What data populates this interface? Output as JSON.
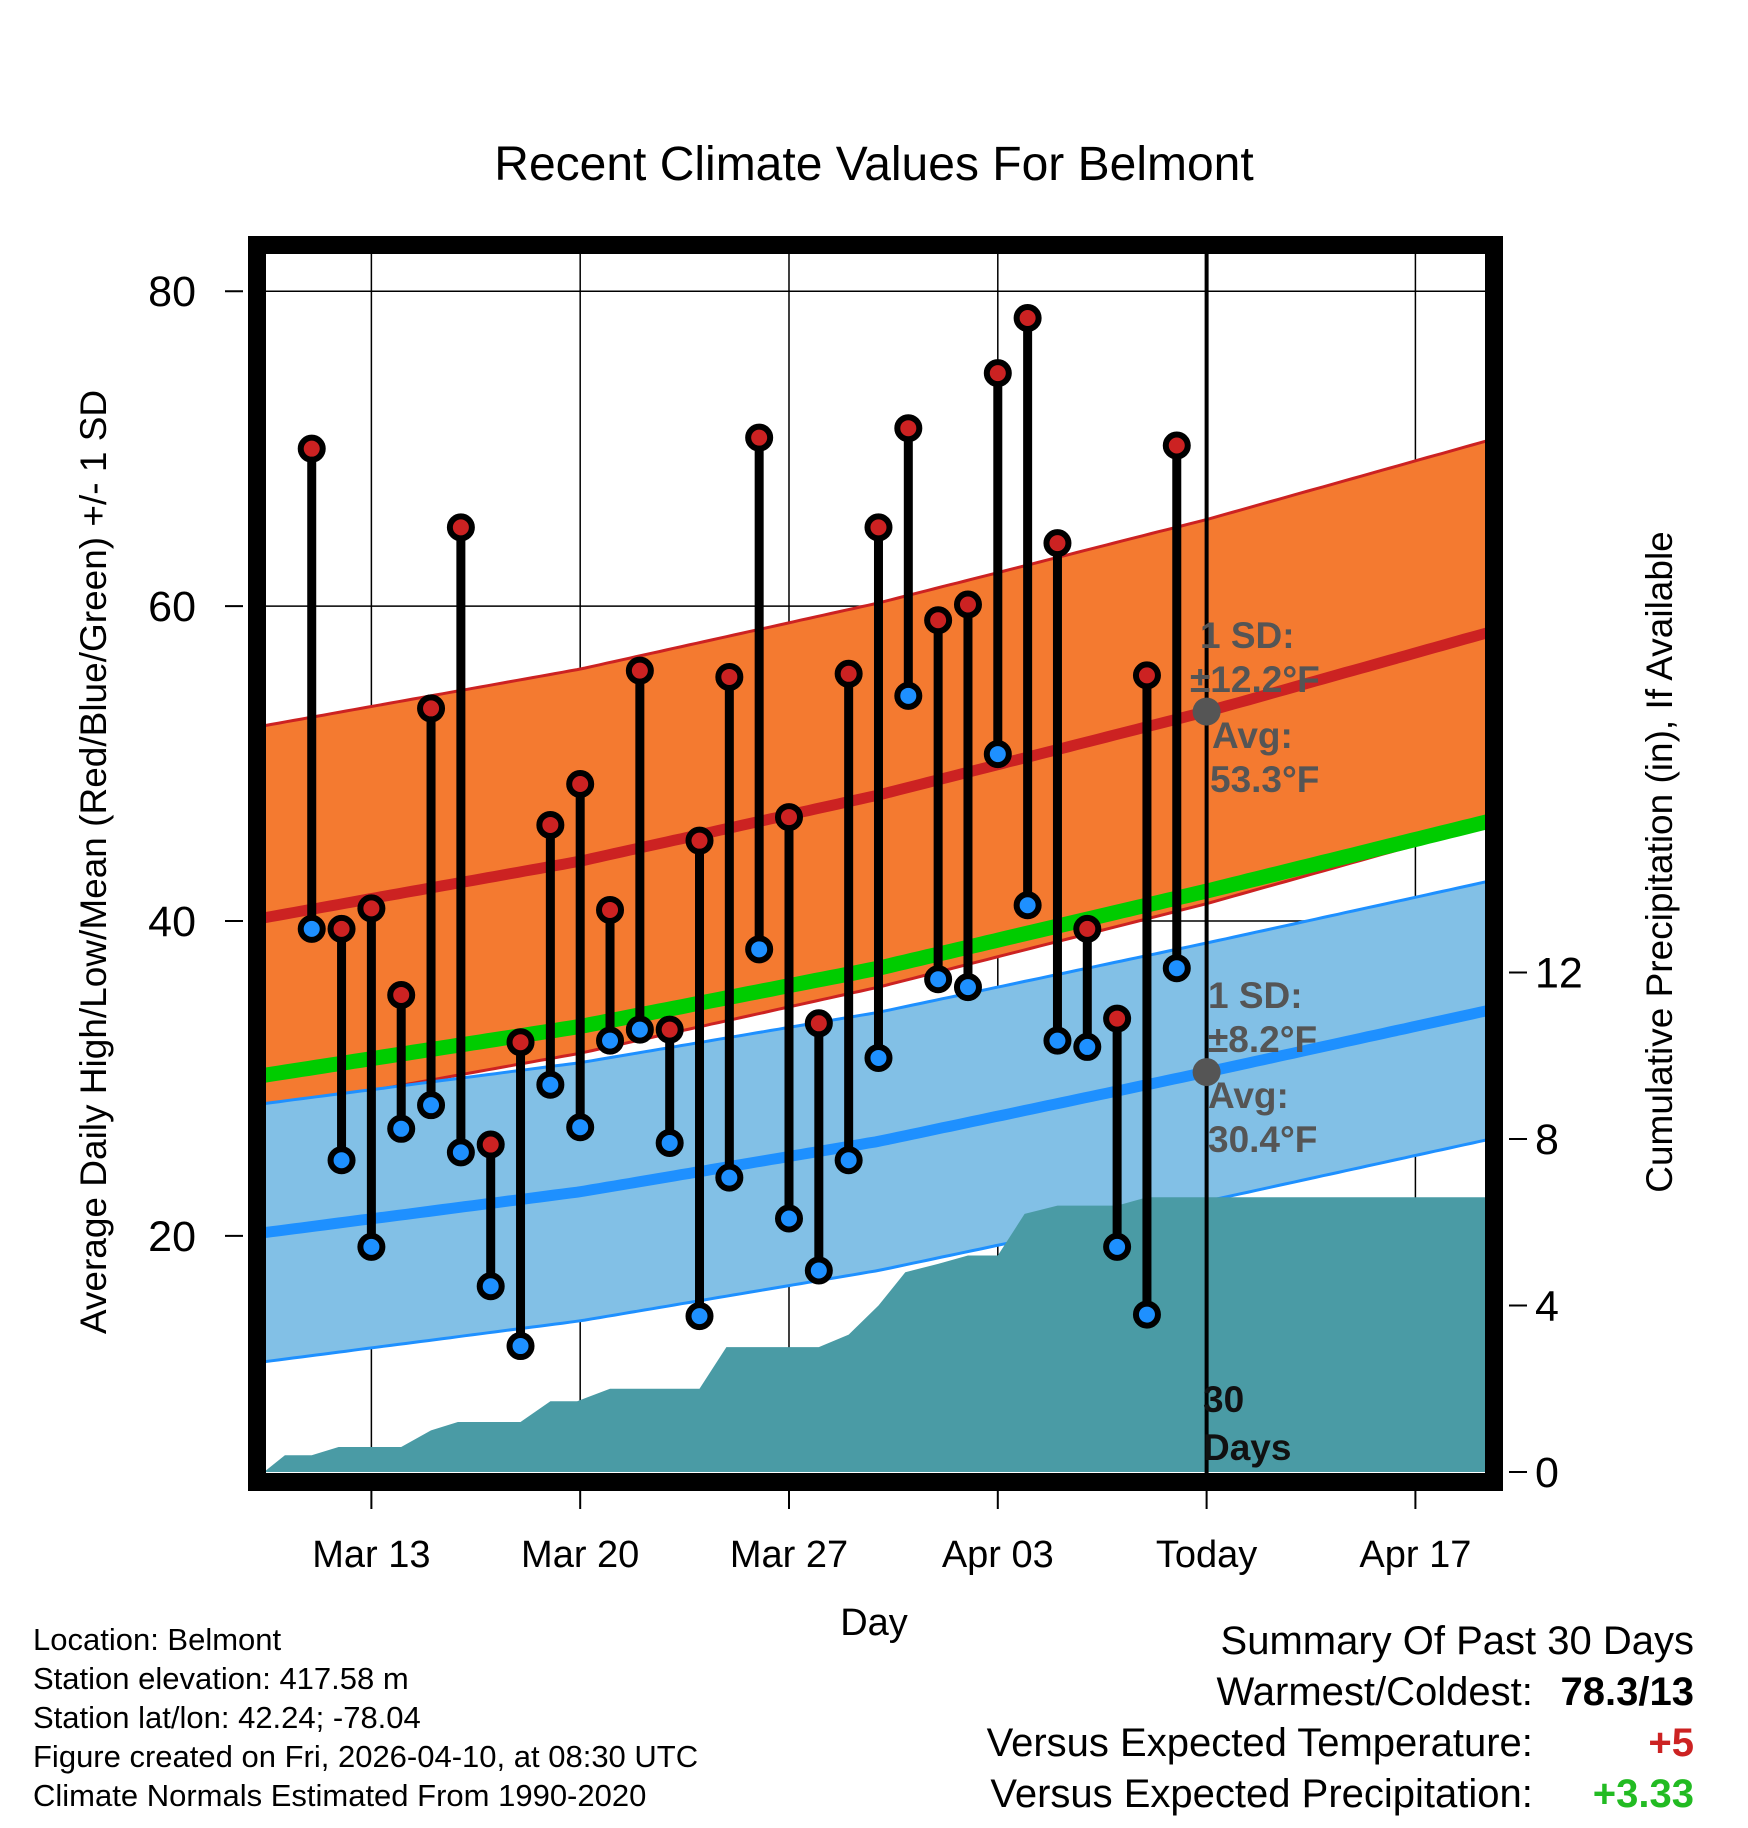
{
  "colors": {
    "high": "#cc2222",
    "low": "#1e90ff",
    "high_band": "#f47a30",
    "low_band": "#82c0e6",
    "mean_line": "#00cc00",
    "precip_fill": "#4a9ba5",
    "annotation": "#555555",
    "warm_delta": "#cc2222",
    "precip_delta": "#22bb22"
  },
  "chart_data": {
    "type": "line",
    "title": "Recent Climate Values For Belmont",
    "xlabel": "Day",
    "ylabel": "Average Daily High/Low/Mean (Red/Blue/Green) +/- 1 SD",
    "y2label": "Cumulative Precipitation (in), If Available",
    "ylim": [
      5,
      83
    ],
    "y2lim": [
      0,
      29.5
    ],
    "xlim": [
      9.4,
      50.4
    ],
    "yticks": [
      20,
      40,
      60,
      80
    ],
    "y2ticks": [
      0,
      4,
      8,
      12
    ],
    "xticks": [
      {
        "x": 13,
        "label": "Mar 13"
      },
      {
        "x": 20,
        "label": "Mar 20"
      },
      {
        "x": 27,
        "label": "Mar 27"
      },
      {
        "x": 34,
        "label": "Apr 03"
      },
      {
        "x": 41,
        "label": "Today"
      },
      {
        "x": 48,
        "label": "Apr 17"
      }
    ],
    "grid": true,
    "today_x": 41,
    "days": [
      11,
      12,
      13,
      14,
      15,
      16,
      17,
      18,
      19,
      20,
      21,
      22,
      23,
      24,
      25,
      26,
      27,
      28,
      29,
      30,
      31,
      32,
      33,
      34,
      35,
      36,
      37,
      38,
      39,
      40
    ],
    "highs": [
      70,
      39.5,
      40.8,
      35.3,
      53.5,
      65,
      25.8,
      32.3,
      46.1,
      48.7,
      40.7,
      55.9,
      33.1,
      45.1,
      55.5,
      70.7,
      46.6,
      33.5,
      55.7,
      65,
      71.3,
      59.1,
      60.1,
      74.8,
      78.3,
      64,
      39.5,
      33.8,
      55.6,
      70.2
    ],
    "lows": [
      39.5,
      24.8,
      19.3,
      26.8,
      28.3,
      25.3,
      16.8,
      13,
      29.6,
      26.9,
      32.4,
      33.1,
      25.9,
      14.9,
      23.7,
      38.2,
      21.1,
      17.8,
      24.8,
      31.3,
      54.3,
      36.3,
      35.8,
      50.6,
      41,
      32.4,
      32,
      19.3,
      15,
      37
    ],
    "normal_high": {
      "x": [
        9.4,
        20,
        30,
        41,
        50.4
      ],
      "avg": [
        40.2,
        43.8,
        48,
        53.3,
        58.3
      ],
      "sd": 12.2
    },
    "normal_low": {
      "x": [
        9.4,
        20,
        30,
        41,
        50.4
      ],
      "avg": [
        20.2,
        22.8,
        26,
        30.4,
        34.3
      ],
      "sd": 8.2
    },
    "normal_mean": {
      "x": [
        9.4,
        20,
        30,
        41,
        50.4
      ],
      "values": [
        30.2,
        33.3,
        37,
        41.9,
        46.3
      ]
    },
    "precip": {
      "x": [
        9.4,
        10.1,
        11,
        11.9,
        13,
        14,
        15,
        15.9,
        17,
        18,
        19,
        19.9,
        21,
        21.9,
        23,
        24,
        24.9,
        26,
        27,
        28,
        29,
        30,
        30.9,
        32,
        33,
        34,
        34.9,
        36,
        36.9,
        38,
        39,
        40,
        41,
        42,
        43,
        44,
        45,
        46,
        47,
        48,
        49,
        50.4
      ],
      "values": [
        0,
        0.4,
        0.4,
        0.6,
        0.6,
        0.6,
        1,
        1.2,
        1.2,
        1.2,
        1.7,
        1.7,
        2,
        2,
        2,
        2,
        3,
        3,
        3,
        3,
        3.3,
        4,
        4.8,
        5,
        5.2,
        5.2,
        6.2,
        6.4,
        6.4,
        6.4,
        6.6,
        6.6,
        6.6,
        6.6,
        6.6,
        6.6,
        6.6,
        6.6,
        6.6,
        6.6,
        6.6,
        6.6
      ]
    },
    "annotations": {
      "high_sd_label": "1 SD:",
      "high_sd_value": "±12.2°F",
      "high_avg_label": "Avg:",
      "high_avg_value": "53.3°F",
      "low_sd_label": "1 SD:",
      "low_sd_value": "±8.2°F",
      "low_avg_label": "Avg:",
      "low_avg_value": "30.4°F",
      "days_number": "30",
      "days_word": "Days"
    }
  },
  "info": {
    "location": "Location: Belmont",
    "elevation": "Station elevation: 417.58 m",
    "latlon": "Station lat/lon: 42.24; -78.04",
    "created": "Figure created on Fri, 2026-04-10, at 08:30 UTC",
    "normals": "Climate Normals Estimated From 1990-2020"
  },
  "summary": {
    "title": "Summary Of Past 30 Days",
    "warmest_label": "Warmest/Coldest:",
    "warmest_value": "78.3/13",
    "temp_label": "Versus Expected Temperature:",
    "temp_value": "+5",
    "precip_label": "Versus Expected Precipitation:",
    "precip_value": "+3.33"
  }
}
